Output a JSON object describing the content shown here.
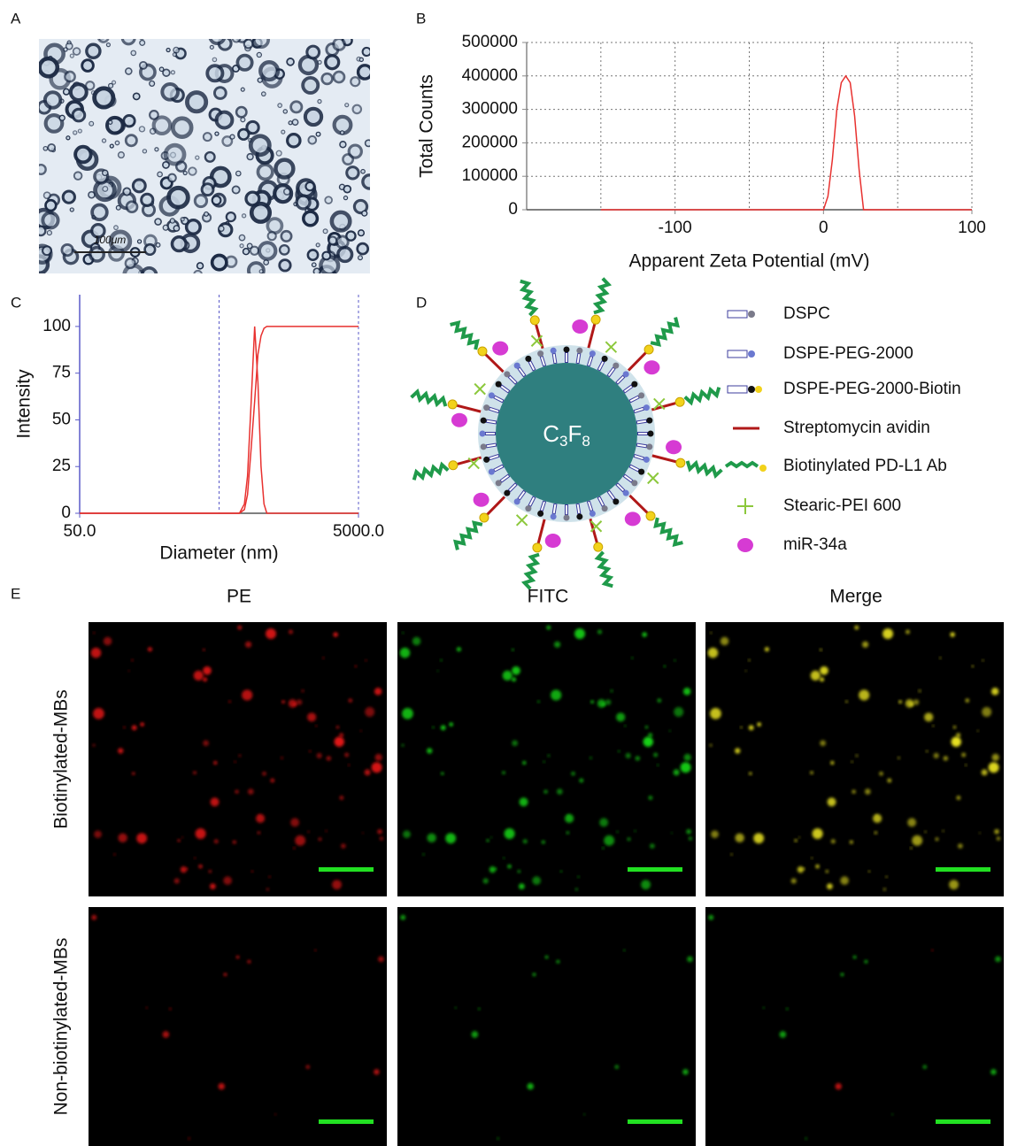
{
  "figure": {
    "panel_labels": [
      "A",
      "B",
      "C",
      "D",
      "E"
    ]
  },
  "panel_a": {
    "scale_bar": "100μm"
  },
  "chart_data": [
    {
      "type": "line",
      "xlabel": "Apparent Zeta Potential (mV)",
      "ylabel": "Total Counts",
      "x": [
        -150,
        0,
        3,
        6,
        9,
        12,
        15,
        18,
        21,
        24,
        27,
        100
      ],
      "series": [
        {
          "color": "#e8312f",
          "values": [
            0,
            0,
            40000,
            150000,
            300000,
            380000,
            400000,
            380000,
            280000,
            120000,
            0,
            0
          ]
        }
      ],
      "xlim": [
        -200,
        100
      ],
      "ylim": [
        0,
        500000
      ],
      "xticks": [
        -100,
        0,
        100
      ],
      "yticks": [
        0,
        100000,
        200000,
        300000,
        400000,
        500000
      ],
      "xgrid_minor": [
        -150,
        -50,
        50
      ],
      "grid": true
    },
    {
      "type": "line",
      "xlabel": "Diameter (nm)",
      "ylabel": "Intensity",
      "xscale": "log",
      "x": [
        50,
        600,
        700,
        760,
        800,
        850,
        900,
        950,
        1000,
        1050,
        1100,
        1200,
        5000
      ],
      "series": [
        {
          "color": "#e8312f",
          "values": [
            0,
            0,
            0,
            5,
            20,
            60,
            100,
            70,
            25,
            5,
            0,
            0,
            0
          ]
        },
        {
          "color": "#e8312f",
          "values": [
            0,
            0,
            0,
            2,
            10,
            35,
            60,
            85,
            95,
            99,
            100,
            100,
            100
          ]
        }
      ],
      "xlim": [
        50,
        5000
      ],
      "ylim": [
        0,
        117
      ],
      "xticks": [
        {
          "value": 50,
          "label": "50.0"
        },
        {
          "value": 5000,
          "label": "5000.0"
        }
      ],
      "yticks": [
        0,
        25,
        50,
        75,
        100
      ],
      "markers": [
        500,
        5000
      ],
      "grid": false
    }
  ],
  "diagram": {
    "core": {
      "c": "C",
      "c_sub": "3",
      "f": "F",
      "f_sub": "8"
    },
    "legend": [
      "DSPC",
      "DSPE-PEG-2000",
      "DSPE-PEG-2000-Biotin",
      "Streptomycin avidin",
      "Biotinylated PD-L1 Ab",
      "Stearic-PEI 600",
      "miR-34a"
    ]
  },
  "panel_e": {
    "columns": [
      "PE",
      "FITC",
      "Merge"
    ],
    "rows": [
      "Biotinylated-MBs",
      "Non-biotinylated-MBs"
    ]
  }
}
